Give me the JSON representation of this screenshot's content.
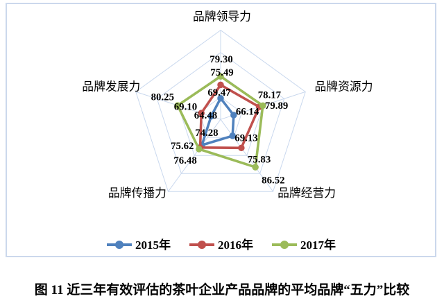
{
  "caption": "图 11 近三年有效评估的茶叶企业产品品牌的平均品牌“五力”比较",
  "chart_data": {
    "type": "radar",
    "title": "",
    "categories": [
      "品牌领导力",
      "品牌资源力",
      "品牌经营力",
      "品牌传播力",
      "品牌发展力"
    ],
    "series": [
      {
        "name": "2015年",
        "color": "#4F81BD",
        "values": [
          69.47,
          66.14,
          69.13,
          74.28,
          64.48
        ]
      },
      {
        "name": "2016年",
        "color": "#C0504D",
        "values": [
          75.49,
          78.17,
          75.83,
          75.62,
          69.1
        ]
      },
      {
        "name": "2017年",
        "color": "#9BBB59",
        "values": [
          79.3,
          79.89,
          86.52,
          76.48,
          80.25
        ]
      }
    ],
    "scale": {
      "min": 60,
      "max": 100,
      "step": 10
    },
    "grid": true,
    "grid_color": "#C9D8EE",
    "legend_position": "bottom",
    "value_label_decimals": 2,
    "label_offsets": [
      [
        [
          -2,
          -7
        ],
        [
          20,
          -4
        ],
        [
          20,
          4
        ],
        [
          7,
          -17
        ],
        [
          -8,
          0
        ]
      ],
      [
        [
          2,
          -17
        ],
        [
          15,
          -16
        ],
        [
          26,
          18
        ],
        [
          -26,
          -1
        ],
        [
          -23,
          -8
        ]
      ],
      [
        [
          1,
          -24
        ],
        [
          20,
          1
        ],
        [
          26,
          20
        ],
        [
          -20,
          18
        ],
        [
          -22,
          -11
        ]
      ]
    ]
  }
}
